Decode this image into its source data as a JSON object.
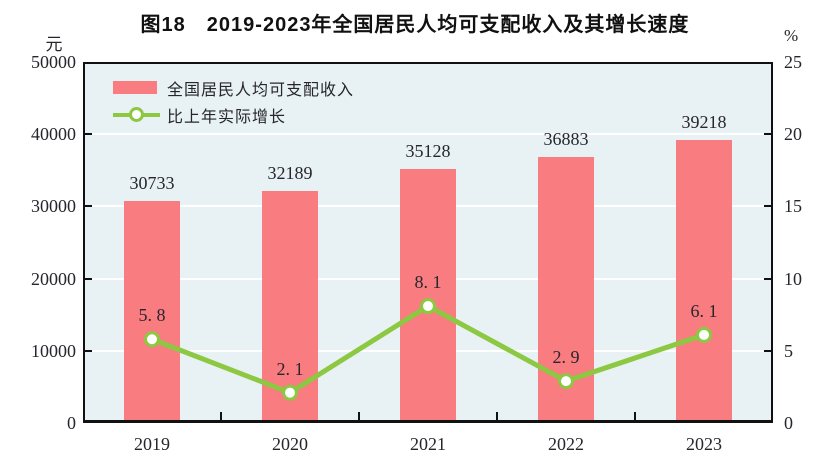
{
  "title": "图18　2019-2023年全国居民人均可支配收入及其增长速度",
  "colors": {
    "bar": "#f87c80",
    "line": "#8cc841",
    "marker_fill": "#ffffff",
    "plot_background": "#e8f1f4",
    "gridline": "#ffffff",
    "axis": "#111111",
    "text": "#26262c"
  },
  "legend": {
    "position": "top-left-inside",
    "items": [
      {
        "label": "全国居民人均可支配收入",
        "swatch": "bar"
      },
      {
        "label": "比上年实际增长",
        "swatch": "line-with-circle-marker"
      }
    ]
  },
  "chart_data": {
    "type": "bar+line",
    "title": "图18　2019-2023年全国居民人均可支配收入及其增长速度",
    "categories": [
      "2019",
      "2020",
      "2021",
      "2022",
      "2023"
    ],
    "series": [
      {
        "name": "全国居民人均可支配收入",
        "type": "bar",
        "y_axis": "left",
        "color": "#f87c80",
        "values": [
          30733,
          32189,
          35128,
          36883,
          39218
        ],
        "value_labels": [
          "30733",
          "32189",
          "35128",
          "36883",
          "39218"
        ]
      },
      {
        "name": "比上年实际增长",
        "type": "line",
        "y_axis": "right",
        "color": "#8cc841",
        "marker": "circle-white-fill",
        "values": [
          5.8,
          2.1,
          8.1,
          2.9,
          6.1
        ],
        "value_labels": [
          "5. 8",
          "2. 1",
          "8. 1",
          "2. 9",
          "6. 1"
        ]
      }
    ],
    "left_axis": {
      "unit": "元",
      "min": 0,
      "max": 50000,
      "ticks": [
        0,
        10000,
        20000,
        30000,
        40000,
        50000
      ]
    },
    "right_axis": {
      "unit": "%",
      "min": 0,
      "max": 25,
      "ticks": [
        0,
        5,
        10,
        15,
        20,
        25
      ]
    },
    "grid": "horizontal-white-lines",
    "legend_position": "top-left-inside",
    "plot_border": "black-box-with-inward-ticks"
  }
}
